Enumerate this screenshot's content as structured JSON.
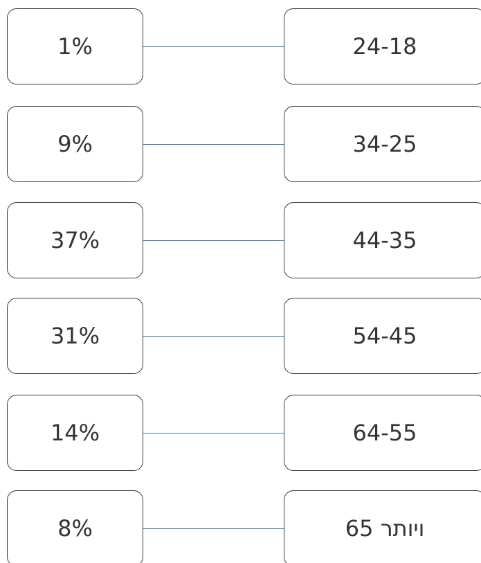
{
  "rows": [
    {
      "value": "1%",
      "range": "24-18"
    },
    {
      "value": "9%",
      "range": "34-25"
    },
    {
      "value": "37%",
      "range": "44-35"
    },
    {
      "value": "31%",
      "range": "54-45"
    },
    {
      "value": "14%",
      "range": "64-55"
    },
    {
      "value": "8%",
      "range": "65 ויותר"
    }
  ]
}
